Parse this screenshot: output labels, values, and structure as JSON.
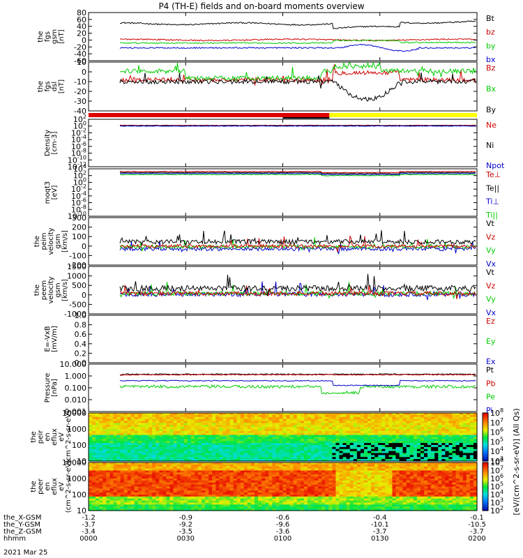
{
  "title": "P4 (TH-E) fields and on-board moments overview",
  "footer": {
    "rows": [
      {
        "label": "the_X-GSM",
        "values": [
          "-1.2",
          "-0.9",
          "-0.6",
          "-0.4",
          "-0.1"
        ]
      },
      {
        "label": "the_Y-GSM",
        "values": [
          "-3.7",
          "-9.2",
          "-9.6",
          "-10.1",
          "-10.5"
        ]
      },
      {
        "label": "the_Z-GSM",
        "values": [
          "-3.4",
          "-3.5",
          "-3.6",
          "-3.7",
          "-3.7"
        ]
      },
      {
        "label": "hhmm",
        "values": [
          "0000",
          "0030",
          "0100",
          "0130",
          "0200"
        ]
      }
    ],
    "date": "2021 Mar 25"
  },
  "colorbars": {
    "ion": {
      "ticks": [
        "10^8",
        "10^7",
        "10^6",
        "10^5",
        "10^4",
        "10^3"
      ]
    },
    "electron": {
      "ticks": [
        "10^8",
        "10^7",
        "10^6",
        "10^5",
        "10^4",
        "10^3",
        "10^2"
      ]
    },
    "label": "[eV/(cm^2-s-sr-eV)] (All Qs)"
  },
  "chart_data": [
    {
      "type": "line",
      "panel": "fgs_gsm",
      "ylabel": "the fgs gsm [nT]",
      "yticks": [
        "80",
        "60",
        "40",
        "20",
        "0",
        "-20",
        "-40",
        "-60"
      ],
      "ylim": [
        -60,
        90
      ],
      "series": [
        {
          "name": "Bt",
          "color": "#000000",
          "level": 55
        },
        {
          "name": "bz",
          "color": "#cc0000",
          "level": 5
        },
        {
          "name": "by",
          "color": "#00cc00",
          "level": -5
        },
        {
          "name": "bx",
          "color": "#0000cc",
          "level": -20
        }
      ]
    },
    {
      "type": "line",
      "panel": "fgs_dsl",
      "ylabel": "the fgs dsl [nT]",
      "yticks": [
        "10",
        "0",
        "-10",
        "-20",
        "-30",
        "-40"
      ],
      "ylim": [
        -45,
        10
      ],
      "series": [
        {
          "name": "Bz",
          "color": "#cc0000",
          "level": -10
        },
        {
          "name": "Bx",
          "color": "#00cc00",
          "level": 0
        },
        {
          "name": "By",
          "color": "#000000",
          "level": -12
        }
      ]
    },
    {
      "type": "line",
      "panel": "density",
      "ylabel": "Density [cm-3]",
      "yticks": [
        "10^2",
        "10^0",
        "10^-2",
        "10^-4",
        "10^-6",
        "10^-8",
        "10^-10",
        "10^-12"
      ],
      "series": [
        {
          "name": "Ne",
          "color": "#cc0000"
        },
        {
          "name": "Ni",
          "color": "#000000"
        },
        {
          "name": "Npot",
          "color": "#0000cc"
        }
      ]
    },
    {
      "type": "line",
      "panel": "temperature",
      "ylabel": "moqt3 [eV]",
      "yticks": [
        "10^4",
        "10^2",
        "10^0",
        "10^-2",
        "10^-4",
        "10^-6",
        "10^-8",
        "10^-10"
      ],
      "series": [
        {
          "name": "Te⊥",
          "color": "#cc0000"
        },
        {
          "name": "Te||",
          "color": "#000000"
        },
        {
          "name": "Ti⊥",
          "color": "#0000cc"
        },
        {
          "name": "Ti||",
          "color": "#00cc00"
        }
      ]
    },
    {
      "type": "line",
      "panel": "peim_velocity",
      "ylabel": "the peim velocity gsm [km/s]",
      "yticks": [
        "300",
        "200",
        "100",
        "0",
        "-100",
        "-200"
      ],
      "ylim": [
        -200,
        330
      ],
      "series": [
        {
          "name": "Vt",
          "color": "#000000",
          "level": 60
        },
        {
          "name": "Vz",
          "color": "#cc0000",
          "level": 10
        },
        {
          "name": "Vy",
          "color": "#00cc00",
          "level": 5
        },
        {
          "name": "Vx",
          "color": "#0000cc",
          "level": -20
        }
      ]
    },
    {
      "type": "line",
      "panel": "peem_velocity",
      "ylabel": "the peem velocity gsm [km/s]",
      "yticks": [
        "1500",
        "1000",
        "500",
        "0",
        "-500",
        "-1000"
      ],
      "ylim": [
        -1200,
        1600
      ],
      "series": [
        {
          "name": "Vt",
          "color": "#000000",
          "level": 300
        },
        {
          "name": "Vz",
          "color": "#cc0000",
          "level": 0
        },
        {
          "name": "Vy",
          "color": "#00cc00",
          "level": 0
        },
        {
          "name": "Vx",
          "color": "#0000cc",
          "level": -50
        }
      ]
    },
    {
      "type": "line",
      "panel": "efield",
      "ylabel": "E=-VxB [mV/m]",
      "yticks": [
        "1.0",
        "0.8",
        "0.6",
        "0.4",
        "0.2",
        "0.0"
      ],
      "ylim": [
        0,
        1
      ],
      "series": [
        {
          "name": "Ez",
          "color": "#cc0000"
        },
        {
          "name": "Ey",
          "color": "#00cc00"
        },
        {
          "name": "Ex",
          "color": "#0000cc"
        }
      ]
    },
    {
      "type": "line",
      "panel": "pressure",
      "ylabel": "Pressure [nPa]",
      "yticks": [
        "10.000",
        "1.000",
        "0.100",
        "0.010",
        "0.001"
      ],
      "series": [
        {
          "name": "Pt",
          "color": "#000000"
        },
        {
          "name": "Pb",
          "color": "#cc0000"
        },
        {
          "name": "Pe",
          "color": "#00cc00"
        },
        {
          "name": "Pi",
          "color": "#0000cc"
        }
      ]
    },
    {
      "type": "heatmap",
      "panel": "peir_spectrogram",
      "ylabel": "the peir en eflux eV (cm^2-s-sr-eV)",
      "yticks": [
        "10000",
        "1000",
        "100",
        "10"
      ]
    },
    {
      "type": "heatmap",
      "panel": "peer_spectrogram",
      "ylabel": "the peer en eflux eV (cm^2-s-sr-eV)",
      "yticks": [
        "10000",
        "1000",
        "100",
        "10"
      ]
    }
  ]
}
